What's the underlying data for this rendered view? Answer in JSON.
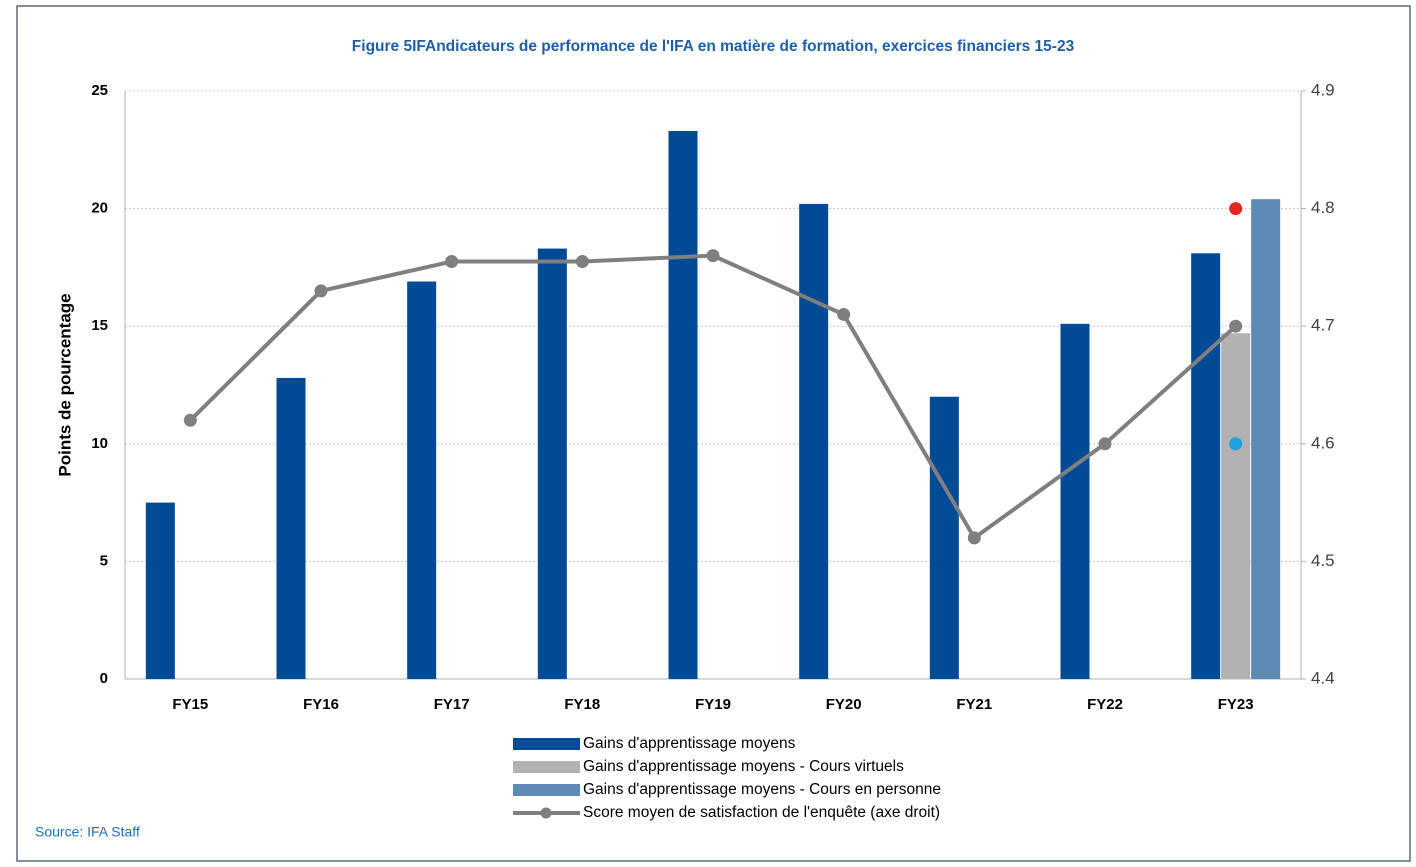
{
  "chart_data": {
    "type": "bar",
    "title": "Figure 5IFAndicateurs de performance de l'IFA en matière de formation, exercices financiers 15-23",
    "ylabel": "Points de pourcentage",
    "source": "Source: IFA Staff",
    "categories": [
      "FY15",
      "FY16",
      "FY17",
      "FY18",
      "FY19",
      "FY20",
      "FY21",
      "FY22",
      "FY23"
    ],
    "series": [
      {
        "name": "Gains d'apprentissage moyens",
        "color": "#004a96",
        "values": [
          7.5,
          12.8,
          16.9,
          18.3,
          23.3,
          20.2,
          12.0,
          15.1,
          18.1
        ]
      },
      {
        "name": "Gains d'apprentissage moyens - Cours virtuels",
        "color": "#b2b2b2",
        "values": [
          null,
          null,
          null,
          null,
          null,
          null,
          null,
          null,
          14.7
        ]
      },
      {
        "name": "Gains d'apprentissage moyens - Cours en personne",
        "color": "#5f8ab5",
        "values": [
          null,
          null,
          null,
          null,
          null,
          null,
          null,
          null,
          20.4
        ]
      },
      {
        "name": "Score moyen de satisfaction de l'enquête (axe droit)",
        "color": "#7f7f7f",
        "type": "line",
        "axis": "y2",
        "values": [
          4.62,
          4.73,
          4.755,
          4.755,
          4.76,
          4.71,
          4.52,
          4.6,
          4.7
        ]
      },
      {
        "color": "#e0261f",
        "type": "scatter",
        "axis": "y2",
        "values": [
          null,
          null,
          null,
          null,
          null,
          null,
          null,
          null,
          4.8
        ]
      },
      {
        "color": "#1aa3e0",
        "type": "scatter",
        "axis": "y2",
        "values": [
          null,
          null,
          null,
          null,
          null,
          null,
          null,
          null,
          4.6
        ]
      }
    ],
    "ylim": [
      0,
      25
    ],
    "yticks": [
      0,
      5,
      10,
      15,
      20,
      25
    ],
    "y2lim": [
      4.4,
      4.9
    ],
    "y2ticks": [
      4.4,
      4.5,
      4.6,
      4.7,
      4.8,
      4.9
    ],
    "grid": true
  }
}
